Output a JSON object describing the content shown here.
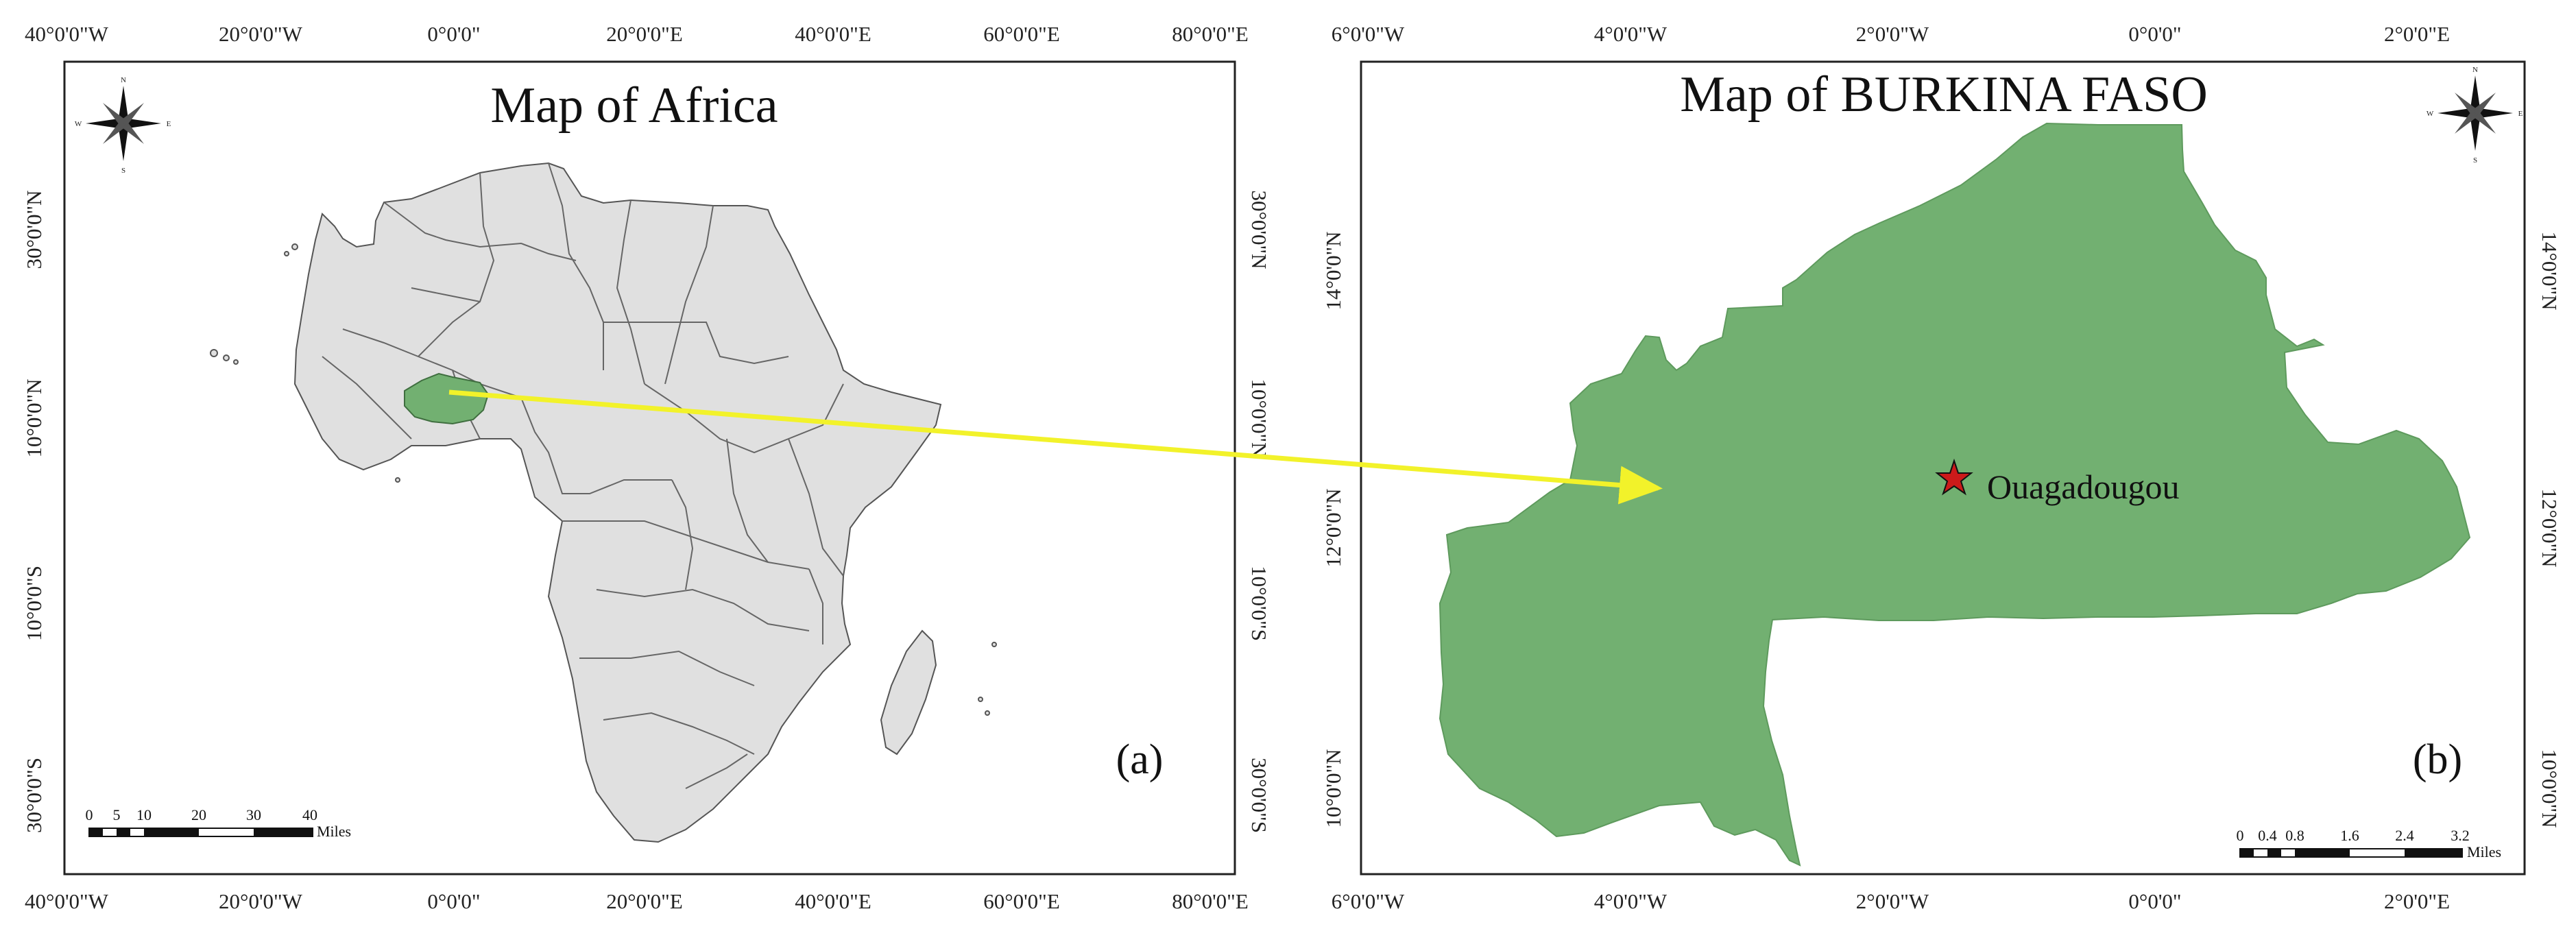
{
  "panels": {
    "africa": {
      "title": "Map of Africa",
      "panel_label": "(a)",
      "x_ticks": [
        "40°0'0\"W",
        "20°0'0\"W",
        "0°0'0\"",
        "20°0'0\"E",
        "40°0'0\"E",
        "60°0'0\"E",
        "80°0'0\"E"
      ],
      "y_ticks": [
        "30°0'0\"N",
        "10°0'0\"N",
        "10°0'0\"S",
        "30°0'0\"S"
      ],
      "scale_bar": {
        "ticks": [
          "0",
          "5",
          "10",
          "20",
          "30",
          "40"
        ],
        "unit": "Miles"
      },
      "north_arrow_labels": {
        "n": "N",
        "s": "S",
        "e": "E",
        "w": "W"
      },
      "highlighted_country": "Burkina Faso",
      "land_color": "#e0e0e0",
      "highlight_color": "#72b071"
    },
    "burkina": {
      "title": "Map of BURKINA FASO",
      "panel_label": "(b)",
      "x_ticks": [
        "6°0'0\"W",
        "4°0'0\"W",
        "2°0'0\"W",
        "0°0'0\"",
        "2°0'0\"E"
      ],
      "y_ticks": [
        "14°0'0\"N",
        "12°0'0\"N",
        "10°0'0\"N"
      ],
      "city": {
        "name": "Ouagadougou",
        "marker_color": "#cc1a1a"
      },
      "scale_bar": {
        "ticks": [
          "0",
          "0.4",
          "0.8",
          "1.6",
          "2.4",
          "3.2"
        ],
        "unit": "Miles"
      },
      "north_arrow_labels": {
        "n": "N",
        "s": "S",
        "e": "E",
        "w": "W"
      },
      "fill_color": "#72b071"
    }
  },
  "connector": {
    "color": "#f2f22a"
  }
}
